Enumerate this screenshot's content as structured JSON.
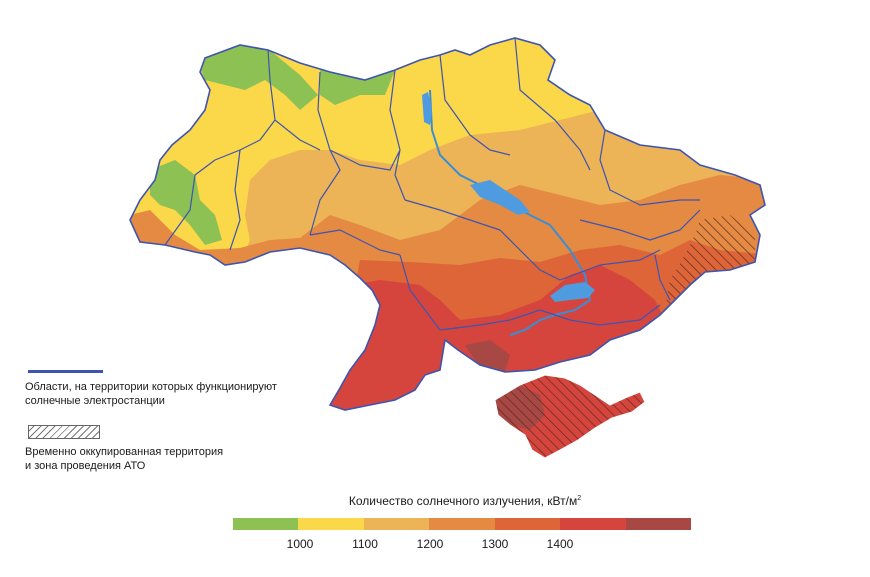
{
  "legend": {
    "plants_text_1": "Области, на территории которых функционируют",
    "plants_text_2": "солнечные электростанции",
    "occupied_text_1": "Временно оккупированная территория",
    "occupied_text_2": "и зона проведения АТО",
    "plants_line_color": "#3d54b0"
  },
  "scale": {
    "title": "Количество солнечного излучения, кВт/м",
    "title_sup": "2",
    "ticks": [
      "1000",
      "1100",
      "1200",
      "1300",
      "1400"
    ],
    "colors": [
      "#8dc153",
      "#fbd74a",
      "#ecb357",
      "#e58a42",
      "#de6538",
      "#d6453d",
      "#a84844"
    ]
  }
}
